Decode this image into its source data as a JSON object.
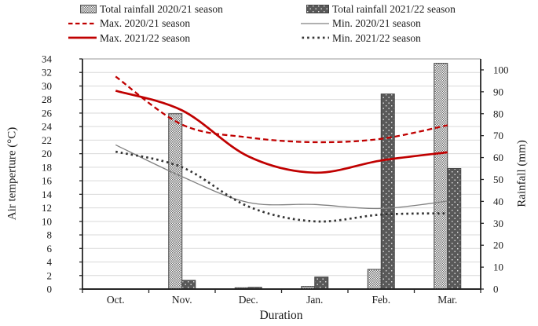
{
  "figure": {
    "xlabel": "Duration",
    "ylabel_left": "Air temperture (°C)",
    "ylabel_right": "Rainfall (mm)"
  },
  "legend": {
    "items": [
      {
        "label": "Total rainfall 2020/21 season",
        "swatch": "bar-hatched"
      },
      {
        "label": "Total rainfall 2021/22 season",
        "swatch": "bar-dark"
      },
      {
        "label": "Max. 2020/21 season",
        "swatch": "line-red-dashed"
      },
      {
        "label": "Min. 2020/21 season",
        "swatch": "line-gray-solid"
      },
      {
        "label": "Max. 2021/22 season",
        "swatch": "line-red-solid"
      },
      {
        "label": "Min. 2021/22 season",
        "swatch": "line-black-dotted"
      }
    ]
  },
  "chart_data": {
    "type": "combo-bar-line",
    "categories": [
      "Oct.",
      "Nov.",
      "Dec.",
      "Jan.",
      "Feb.",
      "Mar."
    ],
    "xlabel": "Duration",
    "bar_series": [
      {
        "name": "Total rainfall 2020/21 season",
        "axis": "right",
        "style": "hatched",
        "values": [
          0,
          80,
          0.6,
          1.2,
          9,
          103
        ]
      },
      {
        "name": "Total rainfall 2021/22 season",
        "axis": "right",
        "style": "dark-dotted",
        "values": [
          0,
          4,
          0.8,
          5.5,
          89,
          55
        ]
      }
    ],
    "line_series": [
      {
        "name": "Max. 2020/21 season",
        "axis": "left",
        "style": "red-dashed",
        "values": [
          31.4,
          24.3,
          22.4,
          21.7,
          22.2,
          24.2
        ]
      },
      {
        "name": "Max. 2021/22 season",
        "axis": "left",
        "style": "red-solid",
        "values": [
          29.3,
          26.4,
          19.6,
          17.2,
          19.0,
          20.2
        ]
      },
      {
        "name": "Min. 2020/21 season",
        "axis": "left",
        "style": "gray-solid",
        "values": [
          21.3,
          16.6,
          12.8,
          12.5,
          11.9,
          13.0
        ]
      },
      {
        "name": "Min. 2021/22 season",
        "axis": "left",
        "style": "black-dotted",
        "values": [
          20.3,
          18.0,
          12.2,
          10.0,
          11.0,
          11.2
        ]
      }
    ],
    "left_axis": {
      "label": "Air temperture (°C)",
      "min": 0,
      "max": 34,
      "step": 2,
      "ticks": [
        0,
        2,
        4,
        6,
        8,
        10,
        12,
        14,
        16,
        18,
        20,
        22,
        24,
        26,
        28,
        30,
        32,
        34
      ]
    },
    "right_axis": {
      "label": "Rainfall (mm)",
      "min": 0,
      "max": 100,
      "step": 10,
      "plot_max": 105,
      "ticks": [
        0,
        10,
        20,
        30,
        40,
        50,
        60,
        70,
        80,
        90,
        100
      ]
    },
    "grid": true,
    "legend_position": "top",
    "colors": {
      "red_line": "#c00000",
      "gray_line": "#808080",
      "dotted_line": "#333333",
      "bar_dark_fill": "#595959",
      "bar_border": "#454545",
      "gridline": "#d9d9d9",
      "axis": "#262626",
      "text": "#1a1a1a"
    }
  }
}
